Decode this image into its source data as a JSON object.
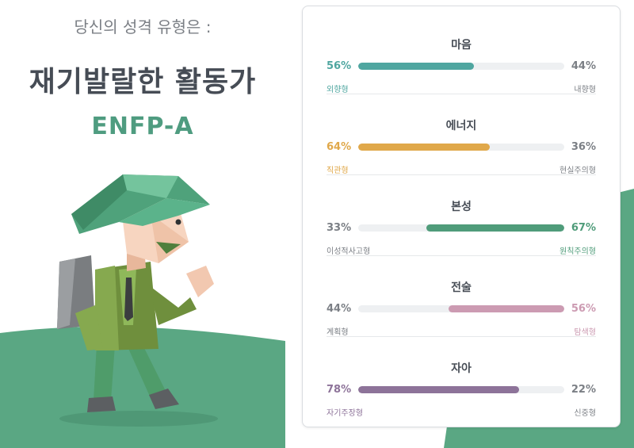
{
  "header": {
    "lead": "당신의 성격 유형은 :",
    "type_name": "재기발랄한 활동가",
    "type_code": "ENFP-A"
  },
  "traits": [
    {
      "title": "마음",
      "left_pct": "56%",
      "right_pct": "44%",
      "left_label": "외향형",
      "right_label": "내향형",
      "dominant": "left",
      "fill_percent": 56,
      "color": "#4fa6a0"
    },
    {
      "title": "에너지",
      "left_pct": "64%",
      "right_pct": "36%",
      "left_label": "직관형",
      "right_label": "현실주의형",
      "dominant": "left",
      "fill_percent": 64,
      "color": "#e0a84a"
    },
    {
      "title": "본성",
      "left_pct": "33%",
      "right_pct": "67%",
      "left_label": "이성적사고형",
      "right_label": "원칙주의형",
      "dominant": "right",
      "fill_percent": 67,
      "color": "#4f9c7a"
    },
    {
      "title": "전술",
      "left_pct": "44%",
      "right_pct": "56%",
      "left_label": "계획형",
      "right_label": "탐색형",
      "dominant": "right",
      "fill_percent": 56,
      "color": "#cc9bb2"
    },
    {
      "title": "자아",
      "left_pct": "78%",
      "right_pct": "22%",
      "left_label": "자기주장형",
      "right_label": "신중형",
      "dominant": "left",
      "fill_percent": 78,
      "color": "#8d7399"
    }
  ],
  "colors": {
    "background_hill": "#5aa783",
    "muted_text": "#7b7f85",
    "heading_text": "#464c55"
  }
}
